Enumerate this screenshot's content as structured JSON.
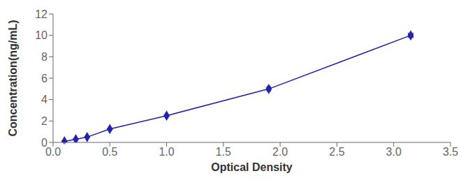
{
  "chart_data": {
    "type": "line",
    "x": [
      0.1,
      0.2,
      0.3,
      0.5,
      1.0,
      1.9,
      3.15
    ],
    "values": [
      0.1,
      0.3,
      0.5,
      1.25,
      2.5,
      5.0,
      10.0
    ],
    "xerr": [
      0.005,
      0.005,
      0.005,
      0.005,
      0.01,
      0.015,
      0.02
    ],
    "yerr": [
      0.05,
      0.05,
      0.05,
      0.06,
      0.08,
      0.1,
      0.1
    ],
    "color": "#2222aa",
    "marker": "diamond",
    "xlabel": "Optical Density",
    "ylabel": "Concentration(ng/mL)",
    "xlim": [
      0,
      3.5
    ],
    "ylim": [
      0,
      12
    ],
    "xticks": [
      {
        "value": 0,
        "label": "0.0"
      },
      0.5,
      {
        "value": 1.0,
        "label": "1.0"
      },
      1.5,
      {
        "value": 2.0,
        "label": "2.0"
      },
      2.5,
      {
        "value": 3.0,
        "label": "3.0"
      },
      3.5
    ],
    "yticks": [
      0,
      2,
      4,
      6,
      8,
      10,
      12
    ],
    "grid": false
  }
}
